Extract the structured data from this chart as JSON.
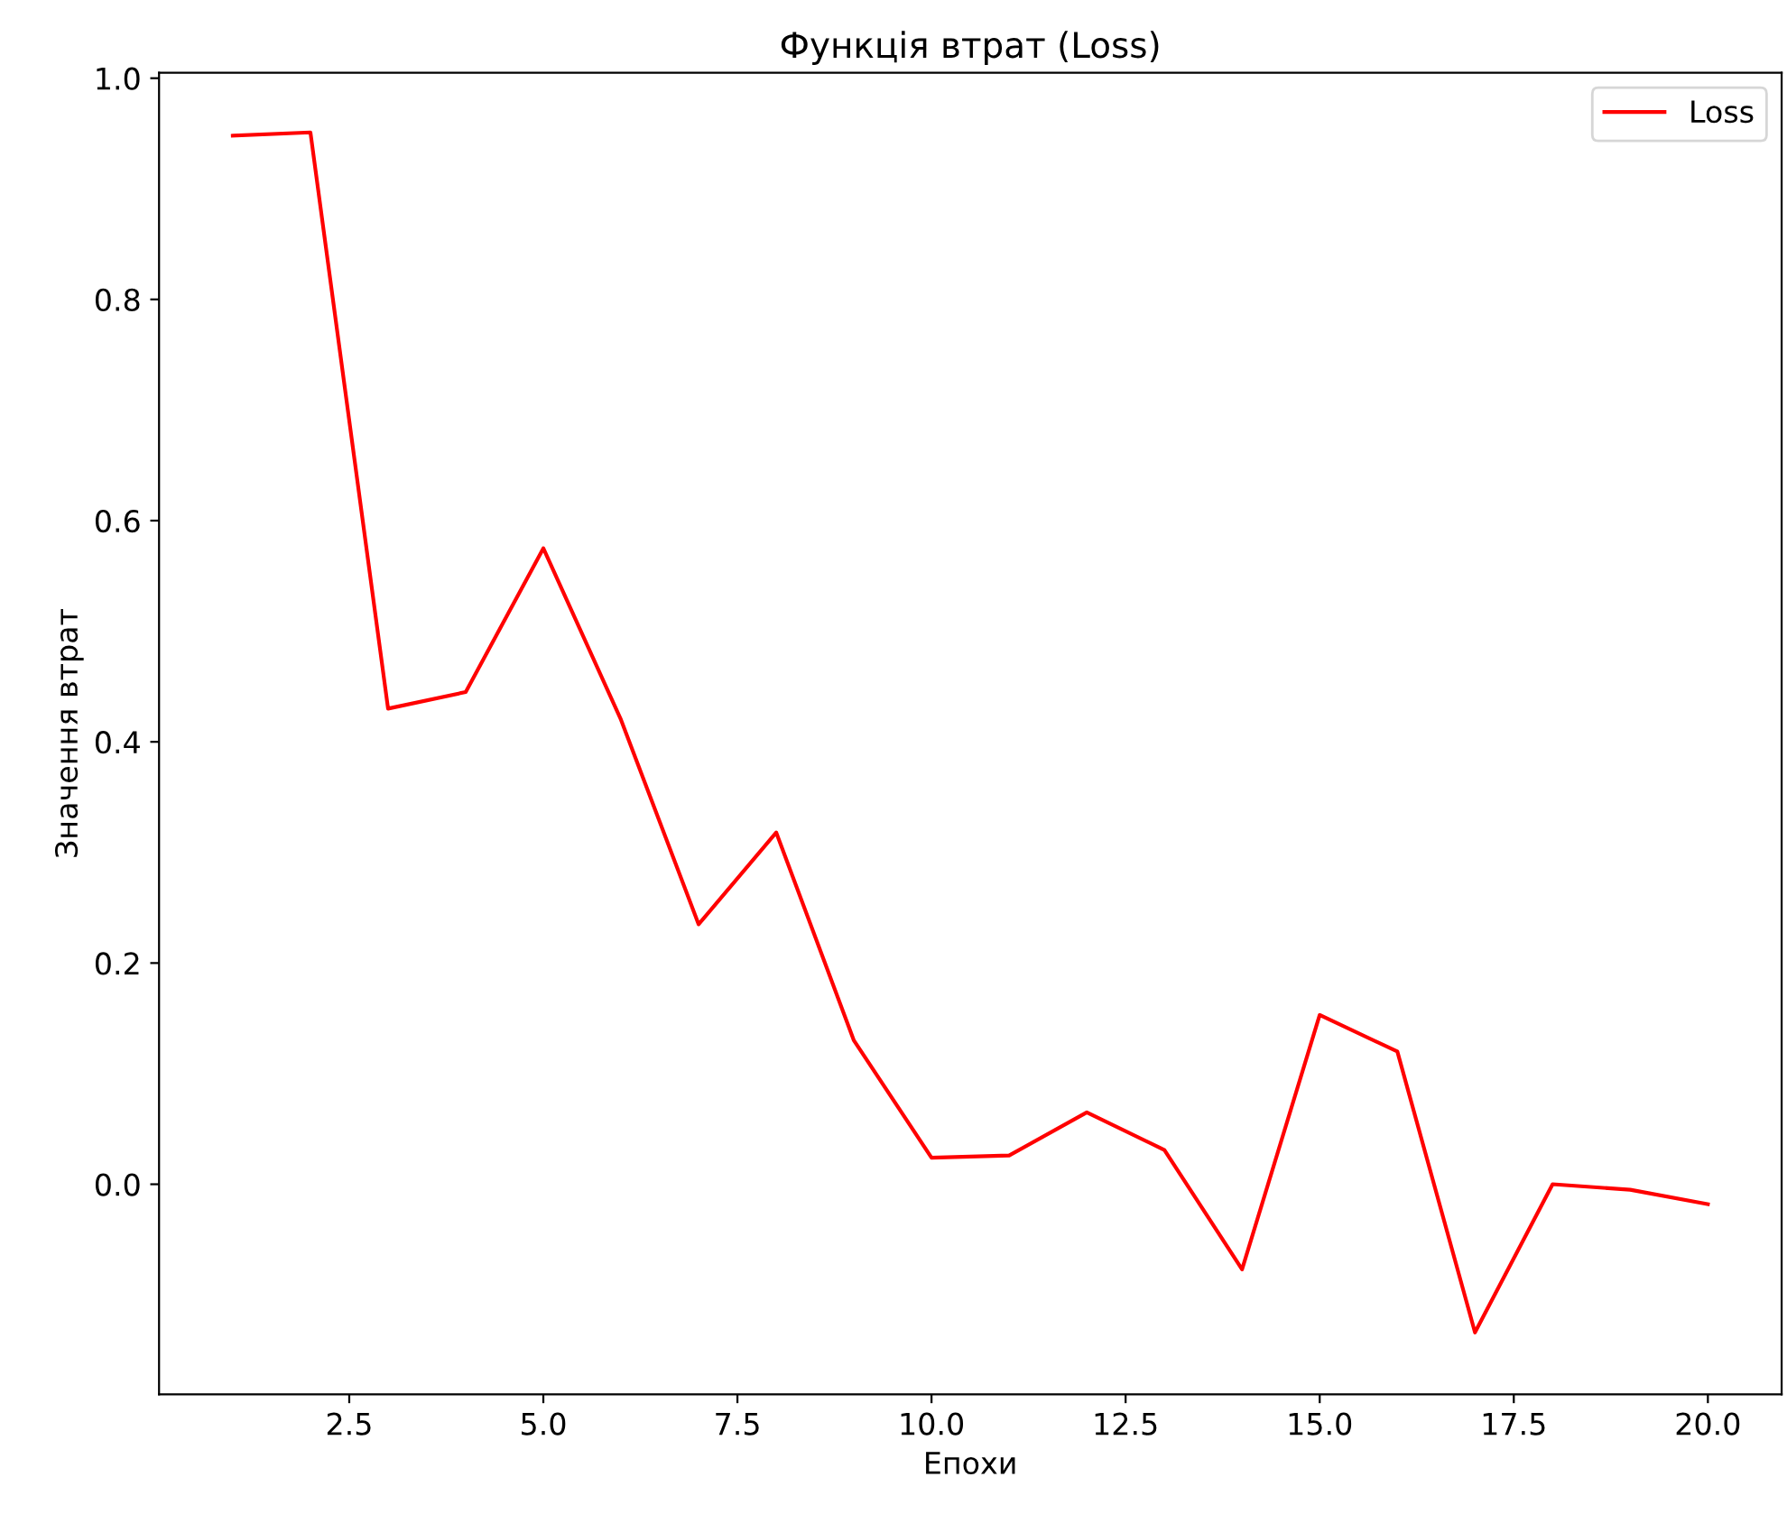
{
  "chart_data": {
    "type": "line",
    "title": "Функція втрат (Loss)",
    "xlabel": "Епохи",
    "ylabel": "Значення втрат",
    "series": [
      {
        "name": "Loss",
        "color": "#ff0000",
        "x": [
          1,
          2,
          3,
          4,
          5,
          6,
          7,
          8,
          9,
          10,
          11,
          12,
          13,
          14,
          15,
          16,
          17,
          18,
          19,
          20
        ],
        "values": [
          0.948,
          0.951,
          0.43,
          0.445,
          0.575,
          0.42,
          0.235,
          0.318,
          0.13,
          0.024,
          0.026,
          0.065,
          0.031,
          -0.077,
          0.153,
          0.12,
          -0.134,
          0.0,
          -0.005,
          -0.018
        ]
      }
    ],
    "xlim": [
      0.05,
      20.95
    ],
    "ylim": [
      -0.19,
      1.005
    ],
    "xticks": [
      2.5,
      {
        "value": 5,
        "label": "5.0"
      },
      7.5,
      {
        "value": 10,
        "label": "10.0"
      },
      12.5,
      {
        "value": 15,
        "label": "15.0"
      },
      17.5,
      {
        "value": 20,
        "label": "20.0"
      }
    ],
    "yticks": [
      {
        "value": 0,
        "label": "0.0"
      },
      {
        "value": 0.2,
        "label": "0.2"
      },
      {
        "value": 0.4,
        "label": "0.4"
      },
      {
        "value": 0.6,
        "label": "0.6"
      },
      {
        "value": 0.8,
        "label": "0.8"
      },
      {
        "value": 1,
        "label": "1.0"
      }
    ],
    "legend": "top right",
    "grid": false
  }
}
